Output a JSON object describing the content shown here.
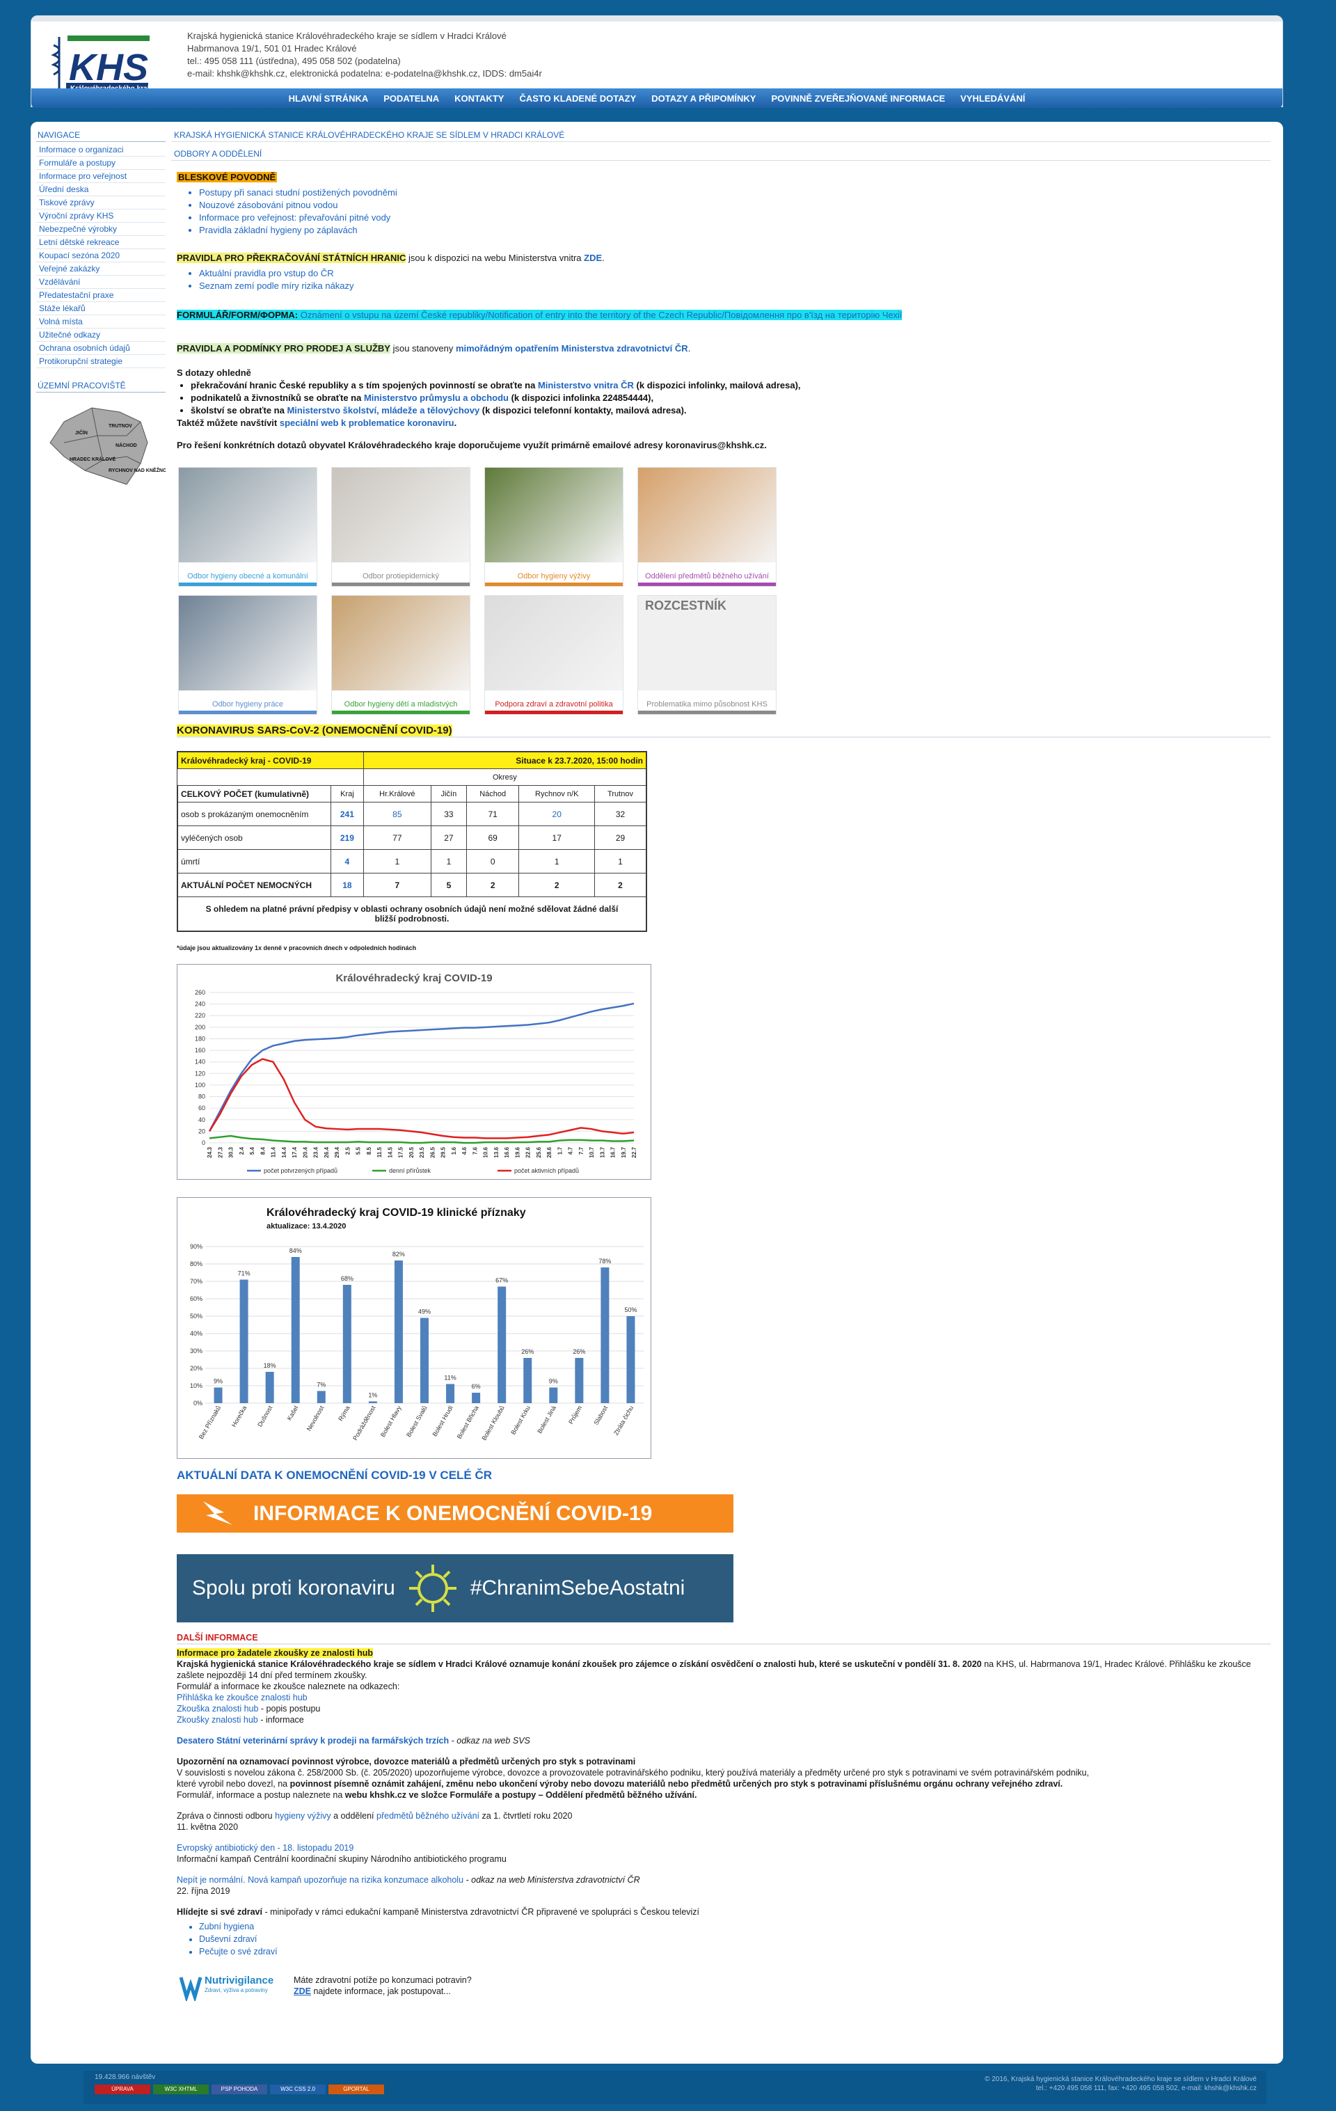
{
  "header": {
    "logo_text": "KHS",
    "logo_sub": "Královéhradeckého kraje",
    "lines": [
      "Krajská hygienická stanice Královéhradeckého kraje se sídlem v Hradci Králové",
      "Habrmanova 19/1, 501 01 Hradec Králové",
      "tel.: 495 058 111 (ústředna), 495 058 502 (podatelna)",
      "e-mail: khshk@khshk.cz, elektronická podatelna: e-podatelna@khshk.cz, IDDS: dm5ai4r"
    ]
  },
  "topnav": [
    "HLAVNÍ STRÁNKA",
    "PODATELNA",
    "KONTAKTY",
    "ČASTO KLADENÉ DOTAZY",
    "DOTAZY A PŘIPOMÍNKY",
    "POVINNĚ ZVEŘEJŇOVANÉ INFORMACE",
    "VYHLEDÁVÁNÍ"
  ],
  "sidebar": {
    "title": "NAVIGACE",
    "items": [
      "Informace o organizaci",
      "Formuláře a postupy",
      "Informace pro veřejnost",
      "Úřední deska",
      "Tiskové zprávy",
      "Výroční zprávy KHS",
      "Nebezpečné výrobky",
      "Letní dětské rekreace",
      "Koupací sezóna 2020",
      "Veřejné zakázky",
      "Vzdělávání",
      "Předatestační praxe",
      "Stáže lékařů",
      "Volná místa",
      "Užitečné odkazy",
      "Ochrana osobních údajů",
      "Protikorupční strategie"
    ],
    "region_title": "ÚZEMNÍ PRACOVIŠTĚ",
    "map_labels": [
      "TRUTNOV",
      "JIČÍN",
      "NÁCHOD",
      "HRADEC KRÁLOVÉ",
      "RYCHNOV NAD KNĚŽNOU"
    ]
  },
  "breadcrumb": "KRAJSKÁ HYGIENICKÁ STANICE KRÁLOVÉHRADECKÉHO KRAJE SE SÍDLEM V HRADCI KRÁLOVÉ",
  "breadcrumb2": "ODBORY A ODDĚLENÍ",
  "flood": {
    "title": "BLESKOVÉ POVODNĚ",
    "items": [
      "Postupy při sanaci studní postižených povodněmi",
      "Nouzové zásobování pitnou vodou",
      "Informace pro veřejnost: převařování pitné vody",
      "Pravidla základní hygieny po záplavách"
    ]
  },
  "borders": {
    "title": "PRAVIDLA PRO PŘEKRAČOVÁNÍ STÁTNÍCH HRANIC",
    "rest": " jsou k dispozici na webu Ministerstva vnitra ",
    "link": "ZDE",
    "dot": ".",
    "items": [
      "Aktuální pravidla pro vstup do ČR",
      "Seznam zemí podle míry rizika nákazy"
    ]
  },
  "form": {
    "label": "FORMULÁŘ/FORM/ФОРМА:",
    "text": " Oznámení o vstupu na území České republiky/Notification of entry into the territory of the Czech Republic/Повідомлення про в'їзд на територію Чехії"
  },
  "sale": {
    "title": "PRAVIDLA A PODMÍNKY PRO PRODEJ A SLUŽBY",
    "rest": " jsou stanoveny ",
    "link": "mimořádným opatřením Ministerstva zdravotnictví ČR",
    "dot": "."
  },
  "questions": {
    "title": "S dotazy ohledně",
    "items": [
      {
        "a": "překračování hranic České republiky a s tím spojených povinností se obraťte na ",
        "l": "Ministerstvo vnitra ČR",
        "b": " (k dispozici infolinky, mailová adresa),"
      },
      {
        "a": "podnikatelů a živnostníků se obraťte na ",
        "l": "Ministerstvo průmyslu a obchodu",
        "b": " (k dispozici infolinka 224854444),"
      },
      {
        "a": "školství se obraťte na ",
        "l": "Ministerstvo školství, mládeže a tělovýchovy",
        "b": " (k dispozici telefonní kontakty, mailová adresa)."
      }
    ],
    "web_a": "Taktéž můžete navštívit ",
    "web_l": "speciální web k problematice koronaviru",
    "web_b": ".",
    "email": "Pro řešení konkrétních dotazů obyvatel Královéhradeckého kraje doporučujeme využít primárně emailové adresy koronavirus@khshk.cz."
  },
  "tiles": [
    {
      "label": "Odbor hygieny obecné a komunální",
      "color": "#3aa0d8",
      "bg": "#8a9aa4"
    },
    {
      "label": "Odbor protiepidemický",
      "color": "#8a8a8a",
      "bg": "#c9c4bd"
    },
    {
      "label": "Odbor hygieny výživy",
      "color": "#e08a2a",
      "bg": "#5f7a3a"
    },
    {
      "label": "Oddělení předmětů běžného užívání",
      "color": "#a54cb0",
      "bg": "#d5a06a"
    },
    {
      "label": "Odbor hygieny práce",
      "color": "#5b8fd0",
      "bg": "#6f8294"
    },
    {
      "label": "Odbor hygieny dětí a mladistvých",
      "color": "#3aa23a",
      "bg": "#c7a06e"
    },
    {
      "label": "Podpora zdraví a zdravotní politika",
      "color": "#d02020",
      "bg": "#dcdcdc"
    },
    {
      "label": "Problematika mimo působnost KHS",
      "color": "#8a8a8a",
      "bg": "#ececec",
      "heading": "ROZCESTNÍK"
    }
  ],
  "covid": {
    "title": "KORONAVIRUS SARS-CoV-2 (ONEMOCNĚNÍ COVID-19)",
    "table_title": "Královéhradecký kraj - COVID-19",
    "situation": "Situace k 23.7.2020, 15:00 hodin",
    "okresy": "Okresy",
    "head": [
      "CELKOVÝ POČET (kumulativně)",
      "Kraj",
      "Hr.Králové",
      "Jičín",
      "Náchod",
      "Rychnov n/K",
      "Trutnov"
    ],
    "rows": [
      {
        "label": "osob s prokázaným onemocněním",
        "vals": [
          "241",
          "85",
          "33",
          "71",
          "20",
          "32"
        ]
      },
      {
        "label": "vyléčených osob",
        "vals": [
          "219",
          "77",
          "27",
          "69",
          "17",
          "29"
        ]
      },
      {
        "label": "úmrtí",
        "vals": [
          "4",
          "1",
          "1",
          "0",
          "1",
          "1"
        ]
      },
      {
        "label": "AKTUÁLNÍ POČET NEMOCNÝCH",
        "vals": [
          "18",
          "7",
          "5",
          "2",
          "2",
          "2"
        ]
      }
    ],
    "note": "S ohledem na platné právní předpisy v oblasti ochrany osobních údajů není možné sdělovat žádné další bližší podrobnosti.",
    "footnote": "*údaje jsou aktualizovány 1x denně v pracovních dnech v odpoledních hodinách"
  },
  "chart_data": [
    {
      "type": "line",
      "title": "Královéhradecký kraj COVID-19",
      "ylim": [
        0,
        260
      ],
      "yticks": [
        0,
        20,
        40,
        60,
        80,
        100,
        120,
        140,
        160,
        180,
        200,
        220,
        240,
        260
      ],
      "x": [
        "24.3",
        "27.3",
        "30.3",
        "2.4",
        "5.4",
        "8.4",
        "11.4",
        "14.4",
        "17.4",
        "20.4",
        "23.4",
        "26.4",
        "29.4",
        "2.5",
        "5.5",
        "8.5",
        "11.5",
        "14.5",
        "17.5",
        "20.5",
        "23.5",
        "26.5",
        "29.5",
        "1.6",
        "4.6",
        "7.6",
        "10.6",
        "13.6",
        "16.6",
        "19.6",
        "22.6",
        "25.6",
        "28.6",
        "1.7",
        "4.7",
        "7.7",
        "10.7",
        "13.7",
        "16.7",
        "19.7",
        "22.7"
      ],
      "series": [
        {
          "name": "počet potvrzených případů",
          "color": "#4472c4",
          "values": [
            20,
            55,
            90,
            120,
            145,
            160,
            168,
            172,
            176,
            178,
            179,
            180,
            181,
            183,
            186,
            188,
            190,
            192,
            193,
            194,
            195,
            196,
            197,
            198,
            199,
            199,
            200,
            201,
            202,
            203,
            204,
            206,
            208,
            212,
            217,
            222,
            227,
            231,
            234,
            237,
            241
          ]
        },
        {
          "name": "denní přírůstek",
          "color": "#2ca02c",
          "values": [
            8,
            10,
            12,
            9,
            7,
            6,
            4,
            3,
            2,
            2,
            1,
            1,
            1,
            1,
            2,
            1,
            1,
            1,
            1,
            0,
            0,
            1,
            1,
            1,
            0,
            0,
            1,
            1,
            1,
            1,
            1,
            2,
            2,
            4,
            5,
            5,
            4,
            4,
            3,
            3,
            4
          ]
        },
        {
          "name": "počet aktivních případů",
          "color": "#e02020",
          "values": [
            20,
            50,
            85,
            115,
            135,
            145,
            140,
            110,
            70,
            40,
            28,
            25,
            24,
            23,
            24,
            24,
            24,
            23,
            22,
            20,
            18,
            15,
            12,
            10,
            9,
            9,
            8,
            8,
            8,
            9,
            10,
            12,
            14,
            18,
            22,
            26,
            24,
            20,
            18,
            16,
            18
          ]
        }
      ]
    },
    {
      "type": "bar",
      "title": "Královéhradecký kraj COVID-19 klinické příznaky",
      "subtitle": "aktualizace: 13.4.2020",
      "ylim": [
        0,
        90
      ],
      "yticks": [
        "0%",
        "10%",
        "20%",
        "30%",
        "40%",
        "50%",
        "60%",
        "70%",
        "80%",
        "90%"
      ],
      "categories": [
        "Bez Příznaků",
        "Horečka",
        "Dušnost",
        "Kašel",
        "Nevolnost",
        "Rýma",
        "Podrážděnost",
        "Bolest Hlavy",
        "Bolest Svalů",
        "Bolest Hrudi",
        "Bolest Břicha",
        "Bolest Kloubů",
        "Bolest Krku",
        "Bolest Jiná",
        "Průjem",
        "Slabost",
        "Ztráta čichu"
      ],
      "values": [
        9,
        71,
        18,
        84,
        7,
        68,
        1,
        82,
        49,
        11,
        6,
        67,
        26,
        9,
        26,
        78,
        50
      ],
      "labels": [
        "9%",
        "71%",
        "18%",
        "84%",
        "7%",
        "68%",
        "1%",
        "82%",
        "49%",
        "11%",
        "6%",
        "67%",
        "26%",
        "9%",
        "26%",
        "78%",
        "50%"
      ]
    }
  ],
  "aktualni": "AKTUÁLNÍ DATA K ONEMOCNĚNÍ COVID-19 V CELÉ ČR",
  "banner1": "INFORMACE K ONEMOCNĚNÍ COVID-19",
  "banner2a": "Spolu proti koronaviru",
  "banner2b": "#ChranimSebeAostatni",
  "dalsi": {
    "title": "DALŠÍ INFORMACE",
    "hub_title": "Informace pro žadatele zkoušky ze znalosti hub",
    "hub_b": "Krajská hygienická stanice Královéhradeckého kraje se sídlem v Hradci Králové oznamuje konání zkoušek pro zájemce o získání osvědčení o znalosti hub, které se uskuteční v pondělí 31. 8. 2020",
    "hub_rest": " na KHS, ul. Habrmanova 19/1, Hradec Králové. Přihlášku ke zkoušce zašlete nejpozději 14 dní před termínem zkoušky.",
    "hub_form": "Formulář a informace ke zkoušce naleznete na odkazech:",
    "hub_l1": "Přihláška ke zkoušce znalosti hub",
    "hub_l2": "Zkouška znalosti hub",
    "hub_l2b": " - popis postupu",
    "hub_l3": "Zkoušky znalosti hub",
    "hub_l3b": " - informace",
    "svs": "Desatero Státní veterinární správy k prodeji na farmářských trzích",
    "svs_b": " - odkaz na web SVS",
    "upoz_t": "Upozornění na oznamovací povinnost výrobce, dovozce materiálů a předmětů určených pro styk s potravinami",
    "upoz_1": "V souvislosti s novelou zákona č. 258/2000 Sb. (č. 205/2020) upozorňujeme výrobce, dovozce a provozovatele potravinářského podniku, který používá materiály a předměty určené pro styk s potravinami ve svém potravinářském podniku,",
    "upoz_2": "které vyrobil nebo dovezl, na ",
    "upoz_2b": "povinnost písemně oznámit zahájení, změnu nebo ukončení výroby nebo dovozu materiálů nebo předmětů určených pro styk s potravinami příslušnému orgánu ochrany veřejného zdraví.",
    "upoz_3": "Formulář, informace a postup naleznete na ",
    "upoz_3b": "webu khshk.cz ve složce Formuláře a postupy – Oddělení předmětů běžného užívání.",
    "zprava_a": "Zpráva o činnosti odboru ",
    "zprava_l1": "hygieny výživy",
    "zprava_m": " a oddělení ",
    "zprava_l2": "předmětů běžného užívání",
    "zprava_b": " za 1. čtvrtletí roku 2020",
    "zprava_d": "11. května 2020",
    "anti_l": "Evropský antibiotický den - 18. listopadu 2019",
    "anti_b": "Informační kampaň Centrální koordinační skupiny Národního antibiotického programu",
    "alk_l": "Nepít je normální. Nová kampaň upozorňuje na rizika konzumace alkoholu",
    "alk_b": " - odkaz na web Ministerstva zdravotnictví ČR",
    "alk_d": "22. října 2019",
    "hlid_a": "Hlídejte si své zdraví",
    "hlid_b": " - minipořady v rámci edukační kampaně Ministerstva zdravotnictví ČR připravené ve spolupráci s Českou televizí",
    "hlid_items": [
      "Zubní hygiena",
      "Duševní zdraví",
      "Pečujte o své zdraví"
    ],
    "nutri_name": "Nutrivigilance",
    "nutri_sub": "Zdraví, výživa a potraviny",
    "nutri_1": "Máte zdravotní potíže po konzumaci potravin?",
    "nutri_l": "ZDE",
    "nutri_2": " najdete informace, jak postupovat..."
  },
  "footer": {
    "counter": "19.428.966 návštěv",
    "right1": "© 2016, Krajská hygienická stanice Královéhradeckého kraje se sídlem v Hradci Králové",
    "right2": "tel.: +420 495 058 111, fax: +420 495 058 502, e-mail: khshk@khshk.cz",
    "badges": [
      "ÚPRAVA",
      "W3C XHTML",
      "PSP POHODA",
      "W3C CSS 2.0",
      "GPORTAL"
    ]
  }
}
